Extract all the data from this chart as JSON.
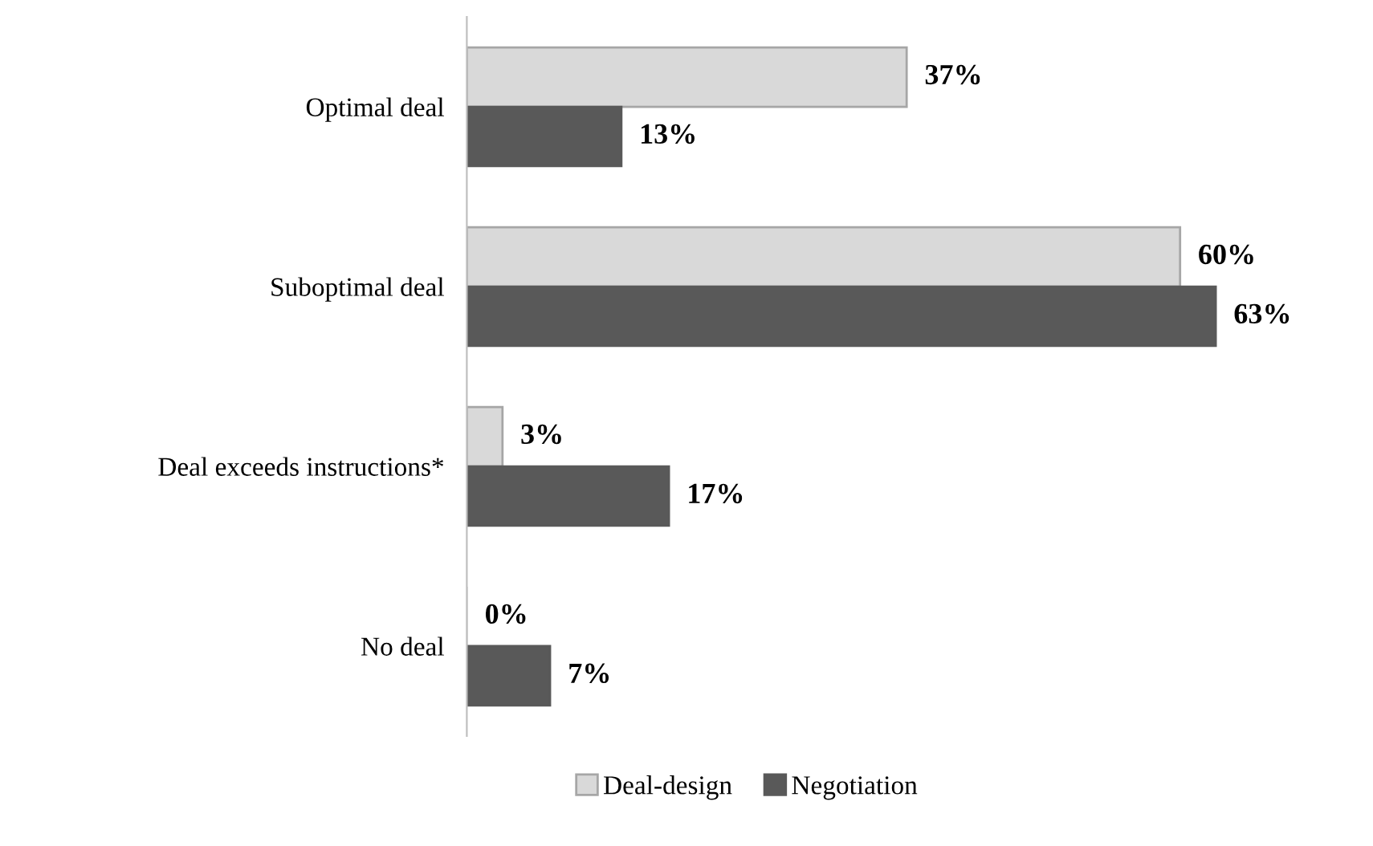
{
  "chart_data": {
    "type": "bar",
    "orientation": "horizontal",
    "categories": [
      "Optimal deal",
      "Suboptimal deal",
      "Deal exceeds instructions*",
      "No deal"
    ],
    "series": [
      {
        "name": "Deal-design",
        "color": "#d9d9d9",
        "values": [
          37,
          60,
          3,
          0
        ],
        "value_labels": [
          "37%",
          "60%",
          "3%",
          "0%"
        ]
      },
      {
        "name": "Negotiation",
        "color": "#595959",
        "values": [
          13,
          63,
          17,
          7
        ],
        "value_labels": [
          "13%",
          "63%",
          "17%",
          "7%"
        ]
      }
    ],
    "legend": "bottom",
    "grid": false
  }
}
